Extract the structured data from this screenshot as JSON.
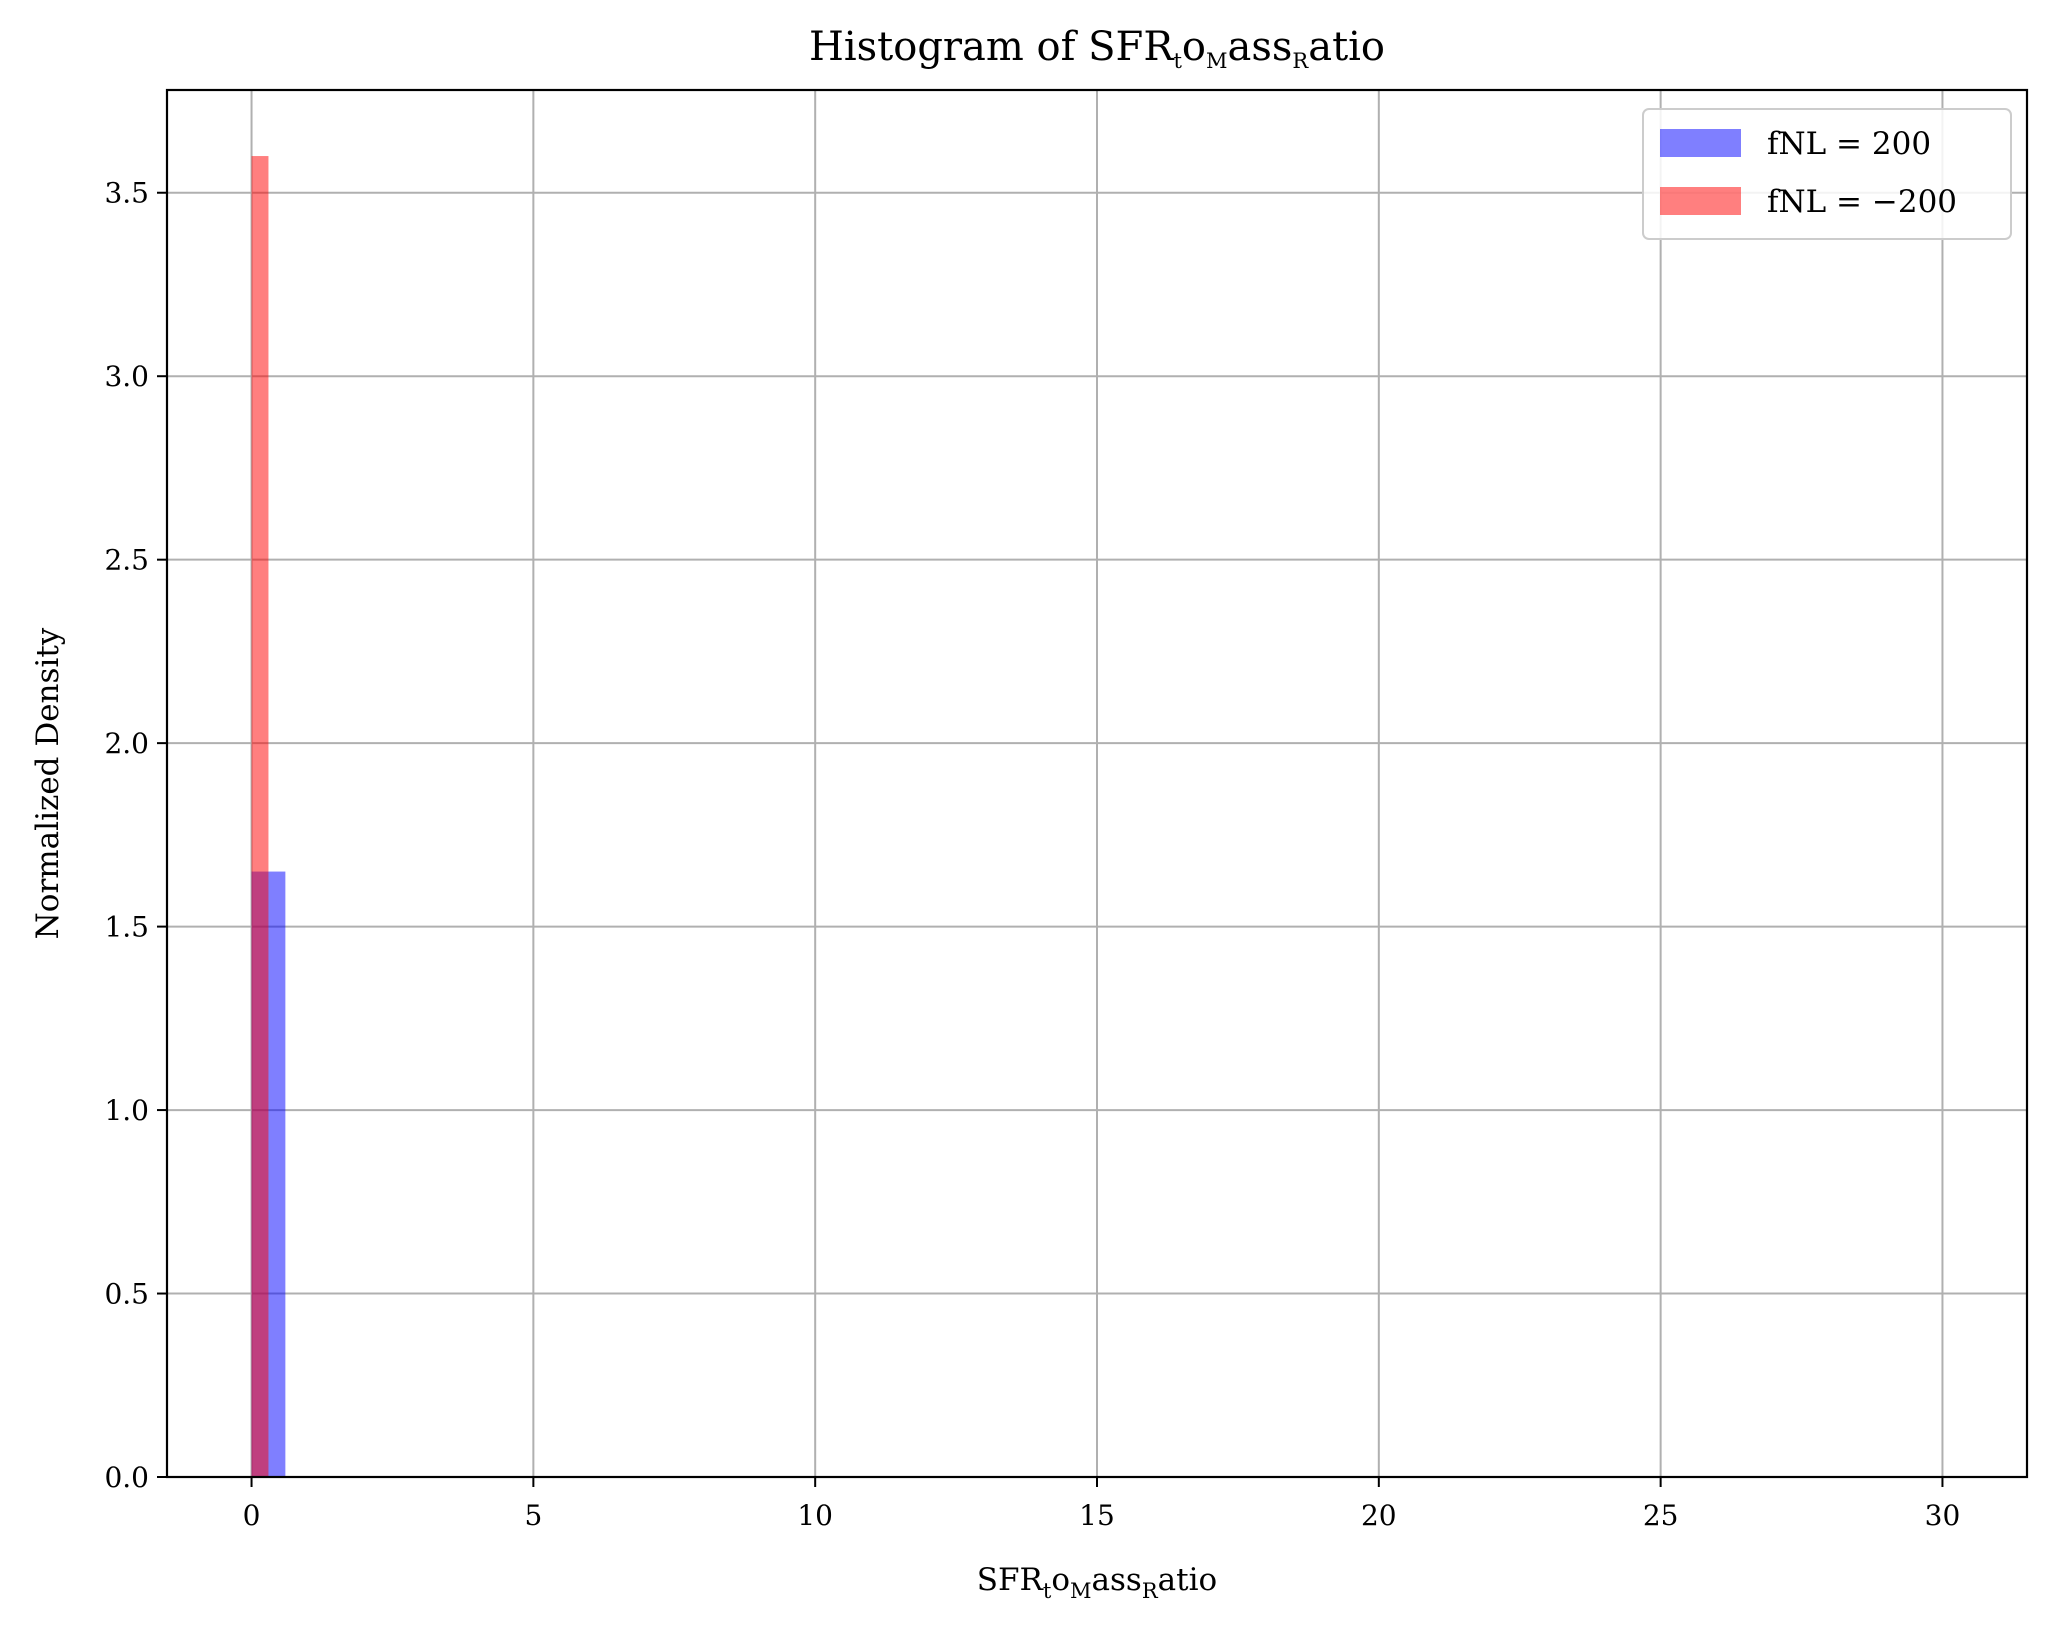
{
  "chart_data": {
    "type": "bar",
    "title": {
      "prefix": "Histogram of ",
      "base": "SFR",
      "parts": [
        [
          "t",
          "o"
        ],
        [
          "M",
          "ass"
        ],
        [
          "R",
          "atio"
        ]
      ]
    },
    "xlabel": {
      "base": "SFR",
      "parts": [
        [
          "t",
          "o"
        ],
        [
          "M",
          "ass"
        ],
        [
          "R",
          "atio"
        ]
      ]
    },
    "ylabel": "Normalized Density",
    "xlim": [
      -1.5,
      31.5
    ],
    "ylim": [
      0,
      3.78
    ],
    "x_ticks": [
      0,
      5,
      10,
      15,
      20,
      25,
      30
    ],
    "x_tick_labels": [
      "0",
      "5",
      "10",
      "15",
      "20",
      "25",
      "30"
    ],
    "y_ticks": [
      0,
      0.5,
      1.0,
      1.5,
      2.0,
      2.5,
      3.0,
      3.5
    ],
    "y_tick_labels": [
      "0.0",
      "0.5",
      "1.0",
      "1.5",
      "2.0",
      "2.5",
      "3.0",
      "3.5"
    ],
    "grid": true,
    "legend": "top-right",
    "series": [
      {
        "name": "fNL = 200",
        "color": "#0000ff",
        "opacity": 0.5,
        "bins": [
          {
            "x0": 0.0,
            "x1": 0.6,
            "value": 1.65
          }
        ]
      },
      {
        "name": "fNL = −200",
        "color": "#ff0000",
        "opacity": 0.5,
        "bins": [
          {
            "x0": 0.0,
            "x1": 0.3,
            "value": 3.6
          }
        ]
      }
    ]
  }
}
